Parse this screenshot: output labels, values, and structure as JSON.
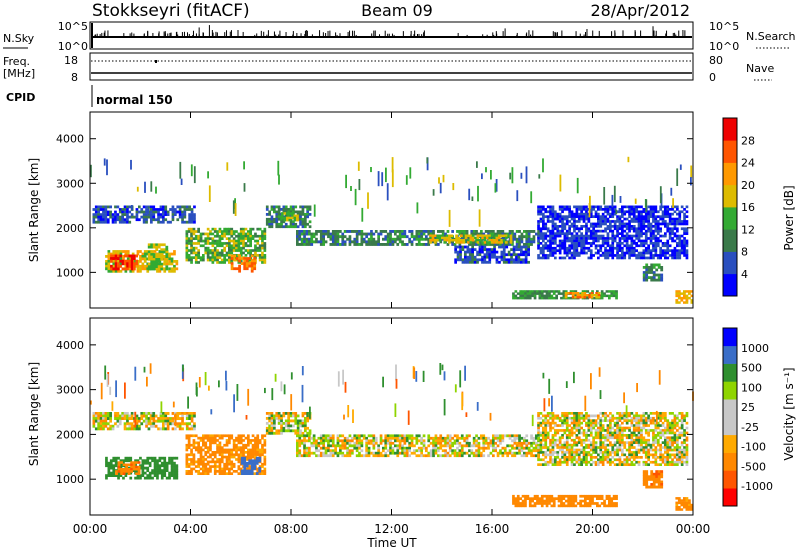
{
  "header": {
    "station": "Stokkseyri (fitACF)",
    "beam": "Beam 09",
    "date": "28/Apr/2012"
  },
  "status": {
    "nsky_label": "N.Sky",
    "nsky_ticks": [
      "10^5",
      "10^0"
    ],
    "nsearch_label": "N.Search",
    "nsearch_ticks": [
      "10^5",
      "10^0"
    ],
    "freq_label_1": "Freq.",
    "freq_label_2": "[MHz]",
    "freq_ticks": [
      "18",
      "8"
    ],
    "nave_label": "Nave",
    "nave_ticks": [
      "80",
      "0"
    ],
    "cpid_label": "CPID",
    "cpid_value": "normal 150"
  },
  "colors": {
    "power": [
      "#0000ff",
      "#2a4fbf",
      "#3a7a4a",
      "#33aa33",
      "#ddbb00",
      "#ff9900",
      "#ff5500",
      "#ee0000"
    ],
    "velocity": [
      "#ff0000",
      "#ff5500",
      "#ff8800",
      "#ffaa00",
      "#c8c8c8",
      "#c8c8c8",
      "#8fd400",
      "#2f8f2f",
      "#3a6ec8",
      "#0000ff"
    ]
  },
  "chart_data": [
    {
      "type": "heatmap",
      "name": "power",
      "ylabel": "Slant Range [km]",
      "yticks": [
        "1000",
        "2000",
        "3000",
        "4000"
      ],
      "ylim": [
        200,
        4600
      ],
      "xlim": [
        "00:00",
        "24:00"
      ],
      "colorbar_label": "Power [dB]",
      "colorbar_ticks": [
        "4",
        "8",
        "12",
        "16",
        "20",
        "24",
        "28"
      ],
      "bands": [
        {
          "t0": 0.1,
          "t1": 4.2,
          "r0": 2100,
          "r1": 2500,
          "v": 6
        },
        {
          "t0": 0.6,
          "t1": 3.5,
          "r0": 1000,
          "r1": 1500,
          "v": 18
        },
        {
          "t0": 0.8,
          "t1": 1.9,
          "r0": 1050,
          "r1": 1400,
          "v": 28
        },
        {
          "t0": 2.3,
          "t1": 3.1,
          "r0": 1050,
          "r1": 1650,
          "v": 16
        },
        {
          "t0": 3.8,
          "t1": 7.0,
          "r0": 1200,
          "r1": 2000,
          "v": 14
        },
        {
          "t0": 5.6,
          "t1": 6.6,
          "r0": 1000,
          "r1": 1400,
          "v": 24
        },
        {
          "t0": 7.0,
          "t1": 8.8,
          "r0": 2000,
          "r1": 2500,
          "v": 10
        },
        {
          "t0": 7.6,
          "t1": 8.3,
          "r0": 2150,
          "r1": 2350,
          "v": 16
        },
        {
          "t0": 8.2,
          "t1": 17.9,
          "r0": 1600,
          "r1": 1950,
          "v": 10
        },
        {
          "t0": 13.5,
          "t1": 16.8,
          "r0": 1650,
          "r1": 1850,
          "v": 18
        },
        {
          "t0": 14.5,
          "t1": 17.5,
          "r0": 1200,
          "r1": 1600,
          "v": 6
        },
        {
          "t0": 16.8,
          "t1": 21.0,
          "r0": 400,
          "r1": 600,
          "v": 12
        },
        {
          "t0": 18.8,
          "t1": 20.3,
          "r0": 420,
          "r1": 560,
          "v": 22
        },
        {
          "t0": 17.8,
          "t1": 23.8,
          "r0": 1300,
          "r1": 2500,
          "v": 4
        },
        {
          "t0": 22.0,
          "t1": 22.8,
          "r0": 800,
          "r1": 1200,
          "v": 10
        },
        {
          "t0": 23.3,
          "t1": 24.0,
          "r0": 300,
          "r1": 600,
          "v": 20
        }
      ]
    },
    {
      "type": "heatmap",
      "name": "velocity",
      "ylabel": "Slant Range [km]",
      "xlabel": "Time UT",
      "yticks": [
        "1000",
        "2000",
        "3000",
        "4000"
      ],
      "ylim": [
        200,
        4600
      ],
      "xlim": [
        "00:00",
        "24:00"
      ],
      "xticks": [
        "00:00",
        "04:00",
        "08:00",
        "12:00",
        "16:00",
        "20:00",
        "00:00"
      ],
      "colorbar_label": "Velocity [m s⁻¹]",
      "colorbar_ticks": [
        "1000",
        "500",
        "100",
        "25",
        "-25",
        "-100",
        "-500",
        "-1000"
      ],
      "bands": [
        {
          "t0": 0.1,
          "t1": 4.2,
          "r0": 2100,
          "r1": 2500,
          "v": 0
        },
        {
          "t0": 0.6,
          "t1": 3.5,
          "r0": 1000,
          "r1": 1500,
          "v": 300
        },
        {
          "t0": 1.0,
          "t1": 2.0,
          "r0": 1100,
          "r1": 1400,
          "v": -400
        },
        {
          "t0": 3.8,
          "t1": 7.0,
          "r0": 1100,
          "r1": 2000,
          "v": -200
        },
        {
          "t0": 6.0,
          "t1": 6.8,
          "r0": 1100,
          "r1": 1500,
          "v": 700
        },
        {
          "t0": 7.0,
          "t1": 8.8,
          "r0": 2000,
          "r1": 2500,
          "v": 0
        },
        {
          "t0": 8.2,
          "t1": 17.9,
          "r0": 1500,
          "r1": 2000,
          "v": 0
        },
        {
          "t0": 16.8,
          "t1": 21.0,
          "r0": 380,
          "r1": 650,
          "v": -300
        },
        {
          "t0": 17.8,
          "t1": 23.8,
          "r0": 1300,
          "r1": 2500,
          "v": 0
        },
        {
          "t0": 22.0,
          "t1": 22.8,
          "r0": 800,
          "r1": 1200,
          "v": -400
        },
        {
          "t0": 23.3,
          "t1": 24.0,
          "r0": 300,
          "r1": 600,
          "v": -200
        }
      ]
    }
  ],
  "xaxis": {
    "ticks": [
      "00:00",
      "04:00",
      "08:00",
      "12:00",
      "16:00",
      "20:00",
      "00:00"
    ],
    "label": "Time UT"
  }
}
